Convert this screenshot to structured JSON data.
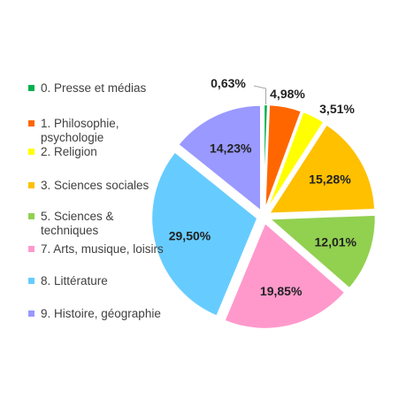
{
  "chart_data": {
    "type": "pie",
    "title": "",
    "slices": [
      {
        "label": "0. Presse et médias",
        "value": 0.63,
        "display": "0,63%",
        "color": "#00B050"
      },
      {
        "label": "1. Philosophie, psychologie",
        "value": 4.98,
        "display": "4,98%",
        "color": "#FF6600"
      },
      {
        "label": "2. Religion",
        "value": 3.51,
        "display": "3,51%",
        "color": "#FFFF00"
      },
      {
        "label": "3. Sciences sociales",
        "value": 15.28,
        "display": "15,28%",
        "color": "#FFC000"
      },
      {
        "label": "5. Sciences & techniques",
        "value": 12.01,
        "display": "12,01%",
        "color": "#92D050"
      },
      {
        "label": "7. Arts, musique, loisirs",
        "value": 19.85,
        "display": "19,85%",
        "color": "#FF99CC"
      },
      {
        "label": "8. Littérature",
        "value": 29.5,
        "display": "29,50%",
        "color": "#66CCFF"
      },
      {
        "label": "9. Histoire, géographie",
        "value": 14.23,
        "display": "14,23%",
        "color": "#9999FF"
      }
    ],
    "legend_position": "left"
  }
}
